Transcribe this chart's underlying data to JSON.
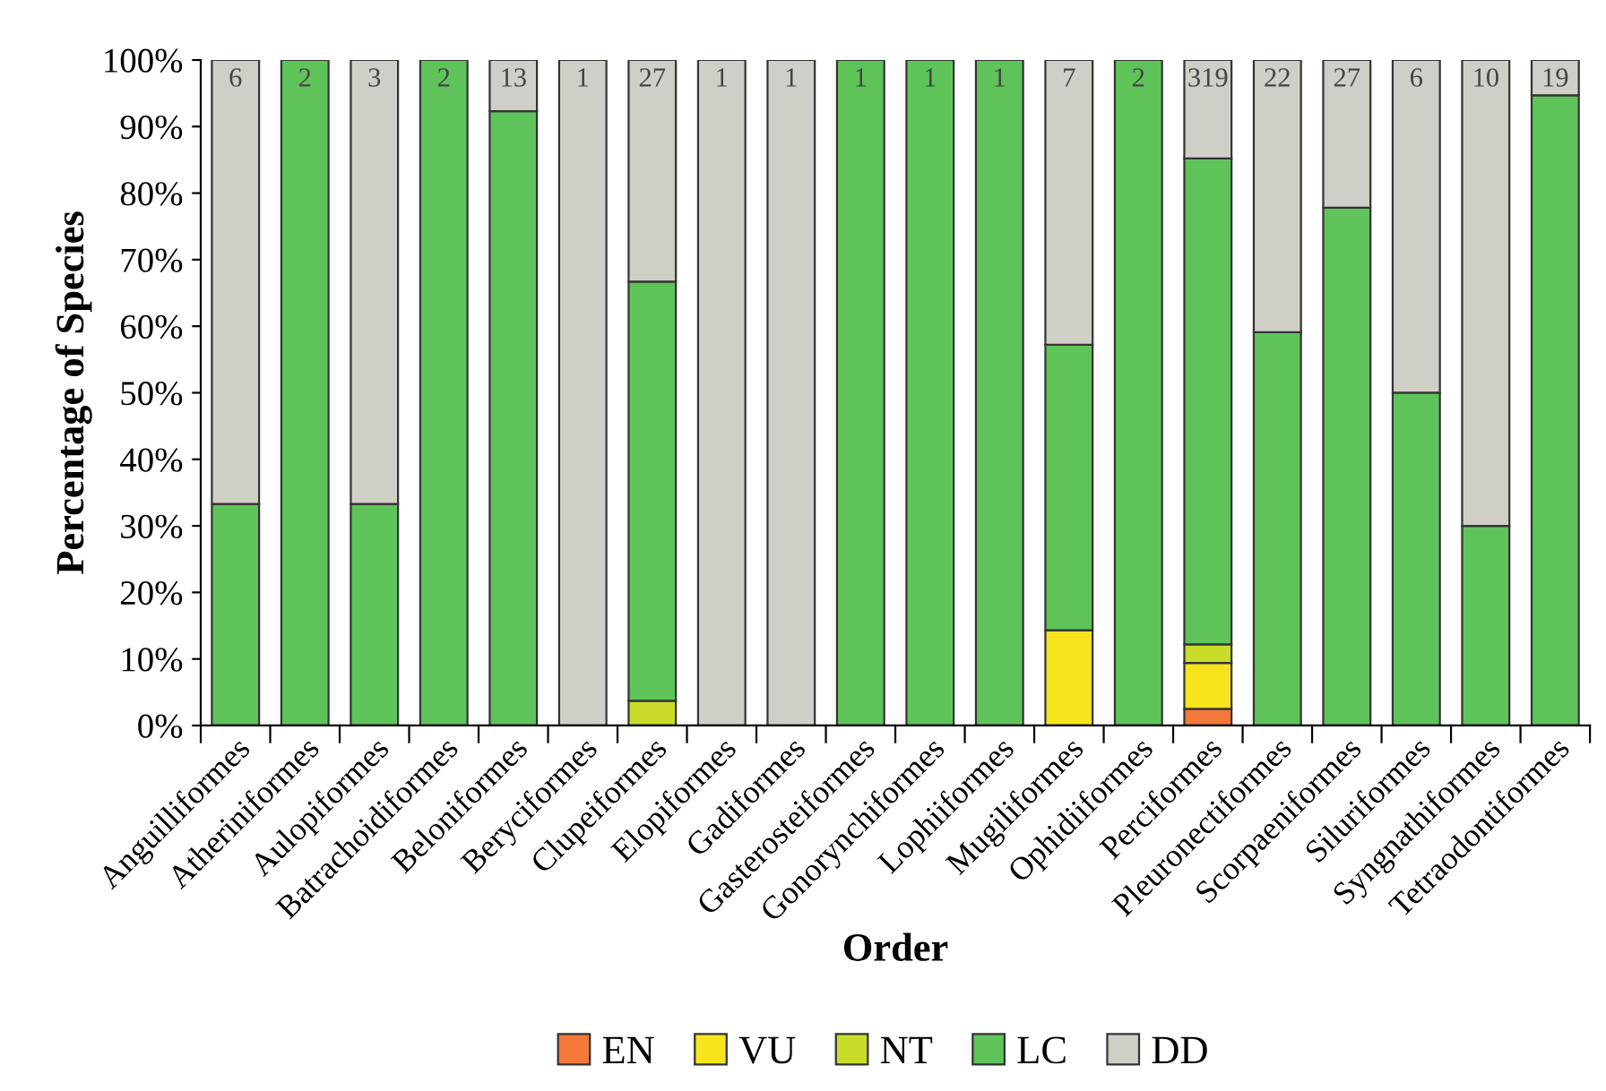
{
  "chart_data": {
    "type": "bar",
    "stacked": true,
    "xlabel": "Order",
    "ylabel": "Percentage of Species",
    "categories": [
      "Anguilliformes",
      "Atheriniformes",
      "Aulopiformes",
      "Batrachoidiformes",
      "Beloniformes",
      "Beryciformes",
      "Clupeiformes",
      "Elopiformes",
      "Gadiformes",
      "Gasterosteiformes",
      "Gonorynchiformes",
      "Lophiiformes",
      "Mugiliformes",
      "Ophidiiformes",
      "Perciformes",
      "Pleuronectiformes",
      "Scorpaeniformes",
      "Siluriformes",
      "Syngnathiformes",
      "Tetraodontiformes"
    ],
    "series": [
      {
        "name": "EN",
        "color": "#f4793a",
        "values": [
          null,
          null,
          null,
          null,
          null,
          null,
          null,
          null,
          null,
          null,
          null,
          null,
          null,
          null,
          2.5,
          null,
          null,
          null,
          null,
          null
        ]
      },
      {
        "name": "VU",
        "color": "#f8e41c",
        "values": [
          null,
          null,
          null,
          null,
          null,
          null,
          null,
          null,
          null,
          null,
          null,
          null,
          14.3,
          null,
          6.9,
          null,
          null,
          null,
          null,
          null
        ]
      },
      {
        "name": "NT",
        "color": "#c8dc2a",
        "values": [
          null,
          null,
          null,
          null,
          null,
          null,
          3.7,
          null,
          null,
          null,
          null,
          null,
          null,
          null,
          2.8,
          null,
          null,
          null,
          null,
          null
        ]
      },
      {
        "name": "LC",
        "color": "#5ec45a",
        "values": [
          33.3,
          100,
          33.3,
          100,
          92.3,
          null,
          63.0,
          null,
          null,
          100,
          100,
          100,
          42.9,
          100,
          73.0,
          59.1,
          77.8,
          50,
          30,
          94.7
        ]
      },
      {
        "name": "DD",
        "color": "#d0cfc7",
        "values": [
          66.7,
          null,
          66.7,
          null,
          7.7,
          100,
          33.3,
          100,
          100,
          null,
          null,
          null,
          42.8,
          null,
          14.8,
          40.9,
          22.2,
          50,
          70,
          5.3
        ]
      }
    ],
    "annotations": [
      {
        "text": "6",
        "x": "Anguilliformes",
        "y": 100
      },
      {
        "text": "2",
        "x": "Atheriniformes",
        "y": 100
      },
      {
        "text": "3",
        "x": "Aulopiformes",
        "y": 100
      },
      {
        "text": "2",
        "x": "Batrachoidiformes",
        "y": 100
      },
      {
        "text": "13",
        "x": "Beloniformes",
        "y": 100
      },
      {
        "text": "1",
        "x": "Beryciformes",
        "y": 100
      },
      {
        "text": "27",
        "x": "Clupeiformes",
        "y": 100
      },
      {
        "text": "1",
        "x": "Elopiformes",
        "y": 100
      },
      {
        "text": "1",
        "x": "Gadiformes",
        "y": 100
      },
      {
        "text": "1",
        "x": "Gasterosteiformes",
        "y": 100
      },
      {
        "text": "1",
        "x": "Gonorynchiformes",
        "y": 100
      },
      {
        "text": "1",
        "x": "Lophiiformes",
        "y": 100
      },
      {
        "text": "7",
        "x": "Mugiliformes",
        "y": 100
      },
      {
        "text": "2",
        "x": "Ophidiiformes",
        "y": 100
      },
      {
        "text": "319",
        "x": "Perciformes",
        "y": 100
      },
      {
        "text": "22",
        "x": "Pleuronectiformes",
        "y": 100
      },
      {
        "text": "27",
        "x": "Scorpaeniformes",
        "y": 100
      },
      {
        "text": "6",
        "x": "Siluriformes",
        "y": 100
      },
      {
        "text": "10",
        "x": "Syngnathiformes",
        "y": 100
      },
      {
        "text": "19",
        "x": "Tetraodontiformes",
        "y": 100
      }
    ],
    "ylim": [
      0,
      100
    ],
    "yticks": [
      {
        "value": 0,
        "label": "0%"
      },
      {
        "value": 10,
        "label": "10%"
      },
      {
        "value": 20,
        "label": "20%"
      },
      {
        "value": 30,
        "label": "30%"
      },
      {
        "value": 40,
        "label": "40%"
      },
      {
        "value": 50,
        "label": "50%"
      },
      {
        "value": 60,
        "label": "60%"
      },
      {
        "value": 70,
        "label": "70%"
      },
      {
        "value": 80,
        "label": "80%"
      },
      {
        "value": 90,
        "label": "90%"
      },
      {
        "value": 100,
        "label": "100%"
      }
    ],
    "grid": false,
    "legend": "bottom"
  }
}
